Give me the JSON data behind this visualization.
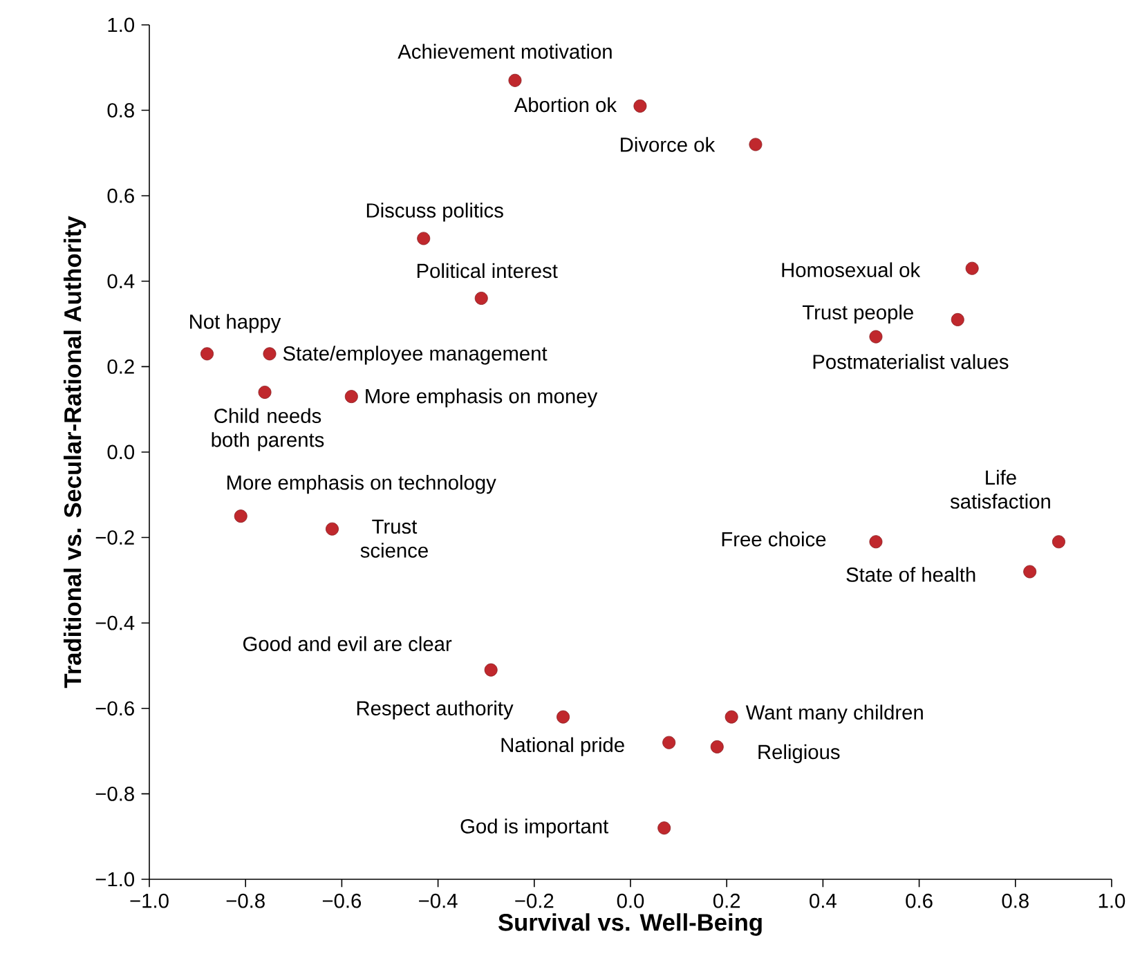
{
  "chart_data": {
    "type": "scatter",
    "xlabel": "Survival vs. Well-Being",
    "ylabel": "Traditional vs. Secular-Rational Authority",
    "xlim": [
      -1.0,
      1.0
    ],
    "ylim": [
      -1.0,
      1.0
    ],
    "xticks": [
      {
        "value": -1.0,
        "label": "−1.0"
      },
      {
        "value": -0.8,
        "label": "−0.8"
      },
      {
        "value": -0.6,
        "label": "−0.6"
      },
      {
        "value": -0.4,
        "label": "−0.4"
      },
      {
        "value": -0.2,
        "label": "−0.2"
      },
      {
        "value": 0.0,
        "label": "0.0"
      },
      {
        "value": 0.2,
        "label": "0.2"
      },
      {
        "value": 0.4,
        "label": "0.4"
      },
      {
        "value": 0.6,
        "label": "0.6"
      },
      {
        "value": 0.8,
        "label": "0.8"
      },
      {
        "value": 1.0,
        "label": "1.0"
      }
    ],
    "yticks": [
      {
        "value": -1.0,
        "label": "−1.0"
      },
      {
        "value": -0.8,
        "label": "−0.8"
      },
      {
        "value": -0.6,
        "label": "−0.6"
      },
      {
        "value": -0.4,
        "label": "−0.4"
      },
      {
        "value": -0.2,
        "label": "−0.2"
      },
      {
        "value": 0.0,
        "label": "0.0"
      },
      {
        "value": 0.2,
        "label": "0.2"
      },
      {
        "value": 0.4,
        "label": "0.4"
      },
      {
        "value": 0.6,
        "label": "0.6"
      },
      {
        "value": 0.8,
        "label": "0.8"
      },
      {
        "value": 1.0,
        "label": "1.0"
      }
    ],
    "grid": false,
    "marker": "circle",
    "series": [
      {
        "color": "#c0282d",
        "x": [
          -0.24,
          0.02,
          0.26,
          -0.43,
          -0.31,
          0.71,
          0.68,
          0.51,
          -0.88,
          -0.75,
          -0.76,
          -0.58,
          -0.81,
          -0.62,
          0.51,
          0.89,
          0.83,
          -0.29,
          -0.14,
          0.21,
          0.08,
          0.18,
          0.07
        ],
        "values": [
          0.87,
          0.81,
          0.72,
          0.5,
          0.36,
          0.43,
          0.31,
          0.27,
          0.23,
          0.23,
          0.14,
          0.13,
          -0.15,
          -0.18,
          -0.21,
          -0.21,
          -0.28,
          -0.51,
          -0.62,
          -0.62,
          -0.68,
          -0.69,
          -0.88
        ]
      }
    ],
    "annotations": [
      {
        "text": "Achievement motivation",
        "x": -0.24,
        "y": 0.87
      },
      {
        "text": "Abortion ok",
        "x": 0.02,
        "y": 0.81
      },
      {
        "text": "Divorce ok",
        "x": 0.26,
        "y": 0.72
      },
      {
        "text": "Discuss politics",
        "x": -0.43,
        "y": 0.5
      },
      {
        "text": "Political interest",
        "x": -0.31,
        "y": 0.36
      },
      {
        "text": "Homosexual ok",
        "x": 0.71,
        "y": 0.43
      },
      {
        "text": "Trust people",
        "x": 0.68,
        "y": 0.31
      },
      {
        "text": "Postmaterialist values",
        "x": 0.51,
        "y": 0.27
      },
      {
        "text": "Not happy",
        "x": -0.88,
        "y": 0.23
      },
      {
        "text": "State/employee management",
        "x": -0.75,
        "y": 0.23
      },
      {
        "text": "Child needs both parents",
        "x": -0.76,
        "y": 0.14
      },
      {
        "text": "More emphasis on money",
        "x": -0.58,
        "y": 0.13
      },
      {
        "text": "More emphasis on technology",
        "x": -0.81,
        "y": -0.15
      },
      {
        "text": "Trust science",
        "x": -0.62,
        "y": -0.18
      },
      {
        "text": "Free choice",
        "x": 0.51,
        "y": -0.21
      },
      {
        "text": "Life satisfaction",
        "x": 0.89,
        "y": -0.21
      },
      {
        "text": "State of health",
        "x": 0.83,
        "y": -0.28
      },
      {
        "text": "Good and evil are clear",
        "x": -0.29,
        "y": -0.51
      },
      {
        "text": "Respect authority",
        "x": -0.14,
        "y": -0.62
      },
      {
        "text": "Want many children",
        "x": 0.21,
        "y": -0.62
      },
      {
        "text": "National pride",
        "x": 0.08,
        "y": -0.68
      },
      {
        "text": "Religious",
        "x": 0.18,
        "y": -0.69
      },
      {
        "text": "God is important",
        "x": 0.07,
        "y": -0.88
      }
    ]
  }
}
